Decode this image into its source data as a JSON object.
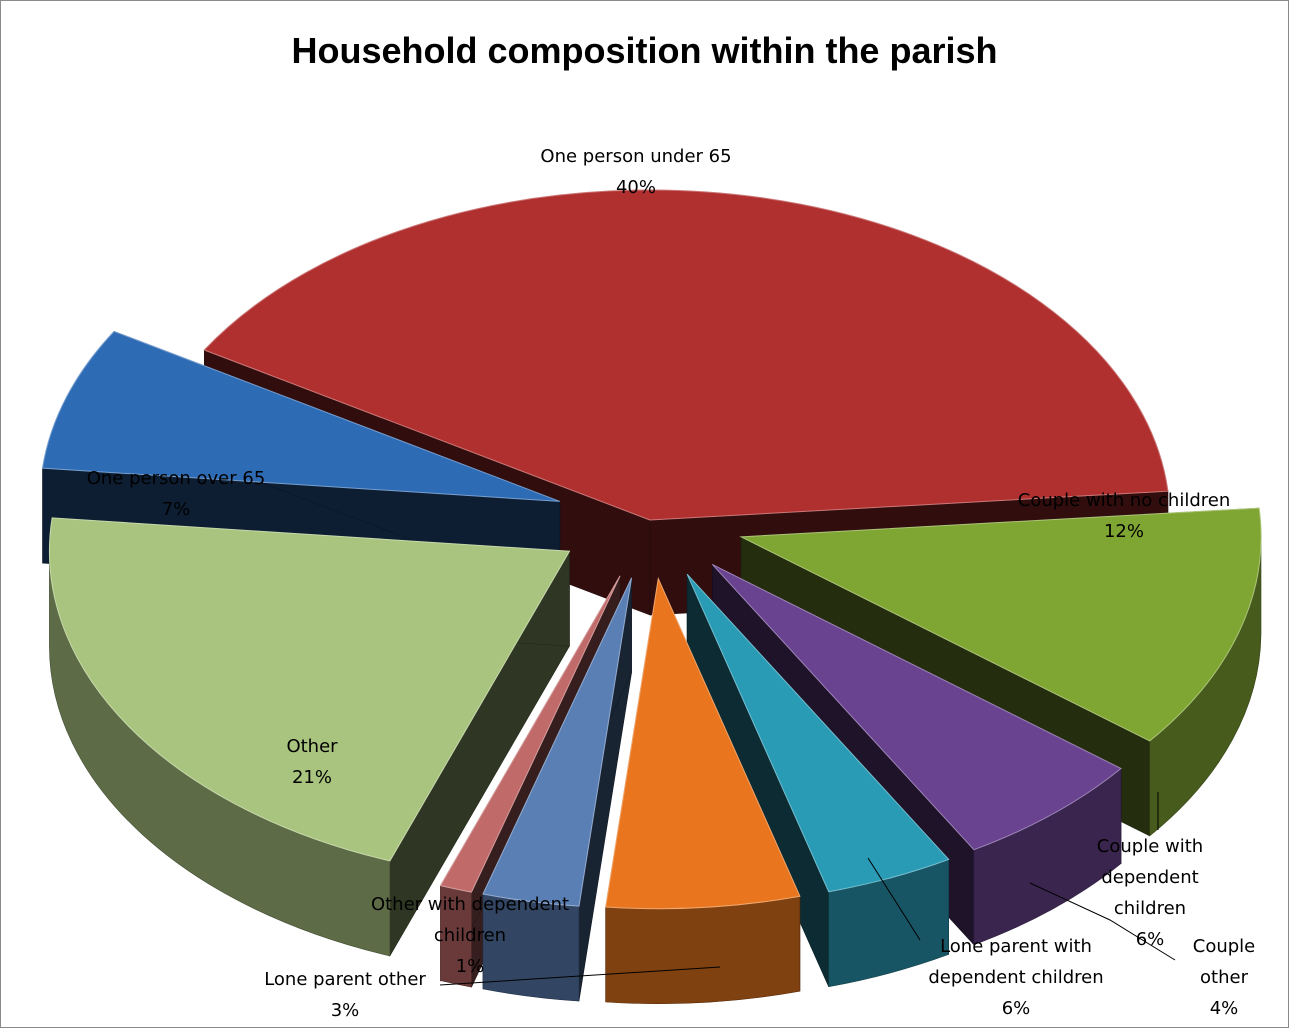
{
  "chart_data": {
    "type": "pie",
    "title": "Household composition within the parish",
    "slices": [
      {
        "name": "One person under 65",
        "label": [
          "One person under 65"
        ],
        "value": 40,
        "pct": "40%",
        "color": "#b03030"
      },
      {
        "name": "Couple with no children",
        "label": [
          "Couple with no children"
        ],
        "value": 12,
        "pct": "12%",
        "color": "#7fa532"
      },
      {
        "name": "Couple with dependent children",
        "label": [
          "Couple with",
          "dependent",
          "children"
        ],
        "value": 6,
        "pct": "6%",
        "color": "#6a4390"
      },
      {
        "name": "Couple other",
        "label": [
          "Couple",
          "other"
        ],
        "value": 4,
        "pct": "4%",
        "color": "#2a9bb5"
      },
      {
        "name": "Lone parent with dependent children",
        "label": [
          "Lone parent with",
          "dependent children"
        ],
        "value": 6,
        "pct": "6%",
        "color": "#e9761e"
      },
      {
        "name": "Lone parent other",
        "label": [
          "Lone parent other"
        ],
        "value": 3,
        "pct": "3%",
        "color": "#5a7fb5"
      },
      {
        "name": "Other with dependent children",
        "label": [
          "Other with dependent",
          "children"
        ],
        "value": 1,
        "pct": "1%",
        "color": "#c06a6a"
      },
      {
        "name": "Other",
        "label": [
          "Other"
        ],
        "value": 21,
        "pct": "21%",
        "color": "#a9c47f"
      },
      {
        "name": "One person over 65",
        "label": [
          "One person over 65"
        ],
        "value": 7,
        "pct": "7%",
        "color": "#2e6bb5"
      }
    ]
  }
}
